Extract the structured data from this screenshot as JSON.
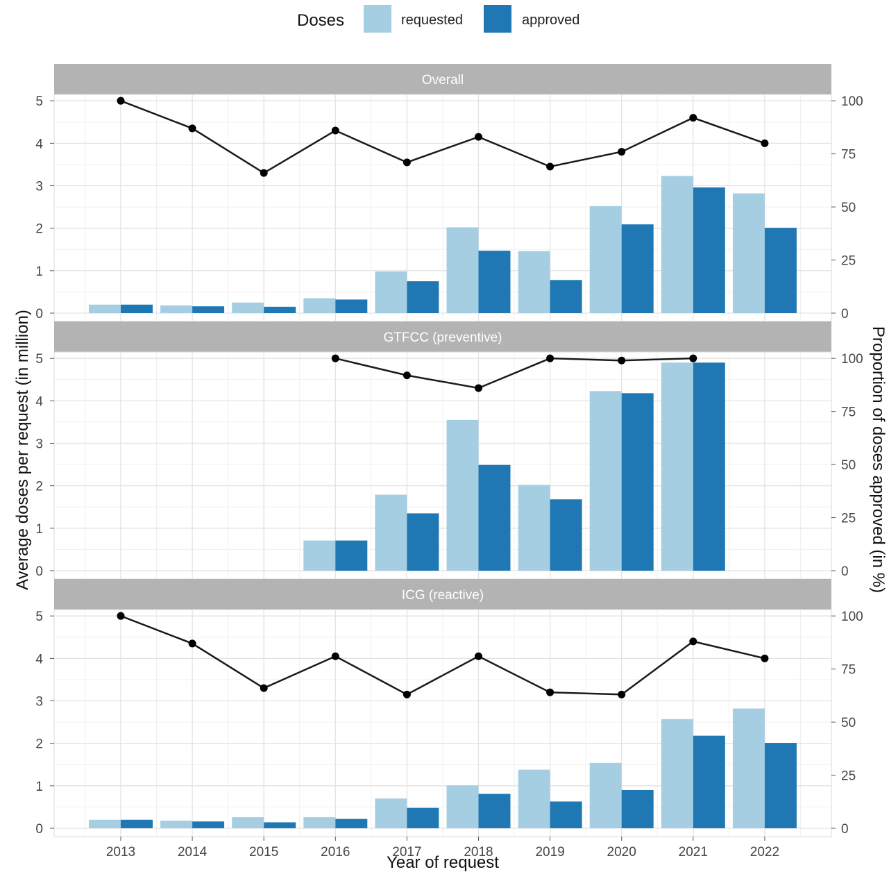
{
  "legend": {
    "title": "Doses",
    "items": [
      {
        "label": "requested",
        "color": "#a6cee3"
      },
      {
        "label": "approved",
        "color": "#1f78b4"
      }
    ]
  },
  "axes": {
    "xlabel": "Year of request",
    "ylabel_left": "Average doses per request (in million)",
    "ylabel_right": "Proportion of doses approved (in %)"
  },
  "chart_data": {
    "type": "bar",
    "categories": [
      "2013",
      "2014",
      "2015",
      "2016",
      "2017",
      "2018",
      "2019",
      "2020",
      "2021",
      "2022"
    ],
    "left_axis": {
      "ylim": [
        0,
        5.15
      ],
      "ticks": [
        0,
        1,
        2,
        3,
        4,
        5
      ]
    },
    "right_axis": {
      "ylim": [
        0,
        103
      ],
      "ticks": [
        0,
        25,
        50,
        75,
        100
      ]
    },
    "grid": true,
    "legend_position": "top",
    "panels": [
      {
        "title": "Overall",
        "series": [
          {
            "name": "requested",
            "values": [
              0.2,
              0.18,
              0.25,
              0.35,
              0.98,
              2.02,
              1.46,
              2.52,
              3.23,
              2.82
            ]
          },
          {
            "name": "approved",
            "values": [
              0.2,
              0.16,
              0.15,
              0.32,
              0.75,
              1.47,
              0.78,
              2.09,
              2.96,
              2.01
            ]
          }
        ],
        "line": [
          100,
          87,
          66,
          86,
          71,
          83,
          69,
          76,
          92,
          80
        ]
      },
      {
        "title": "GTFCC (preventive)",
        "series": [
          {
            "name": "requested",
            "values": [
              null,
              null,
              null,
              0.71,
              1.79,
              3.55,
              2.02,
              4.23,
              4.9,
              null
            ]
          },
          {
            "name": "approved",
            "values": [
              null,
              null,
              null,
              0.71,
              1.35,
              2.49,
              1.68,
              4.18,
              4.9,
              null
            ]
          }
        ],
        "line": [
          null,
          null,
          null,
          100,
          92,
          86,
          100,
          99,
          100,
          null
        ]
      },
      {
        "title": "ICG (reactive)",
        "series": [
          {
            "name": "requested",
            "values": [
              0.2,
              0.18,
              0.26,
              0.26,
              0.7,
              1.01,
              1.38,
              1.54,
              2.57,
              2.82
            ]
          },
          {
            "name": "approved",
            "values": [
              0.2,
              0.16,
              0.14,
              0.22,
              0.48,
              0.81,
              0.63,
              0.9,
              2.18,
              2.01
            ]
          }
        ],
        "line": [
          100,
          87,
          66,
          81,
          63,
          81,
          64,
          63,
          88,
          80
        ]
      }
    ]
  }
}
